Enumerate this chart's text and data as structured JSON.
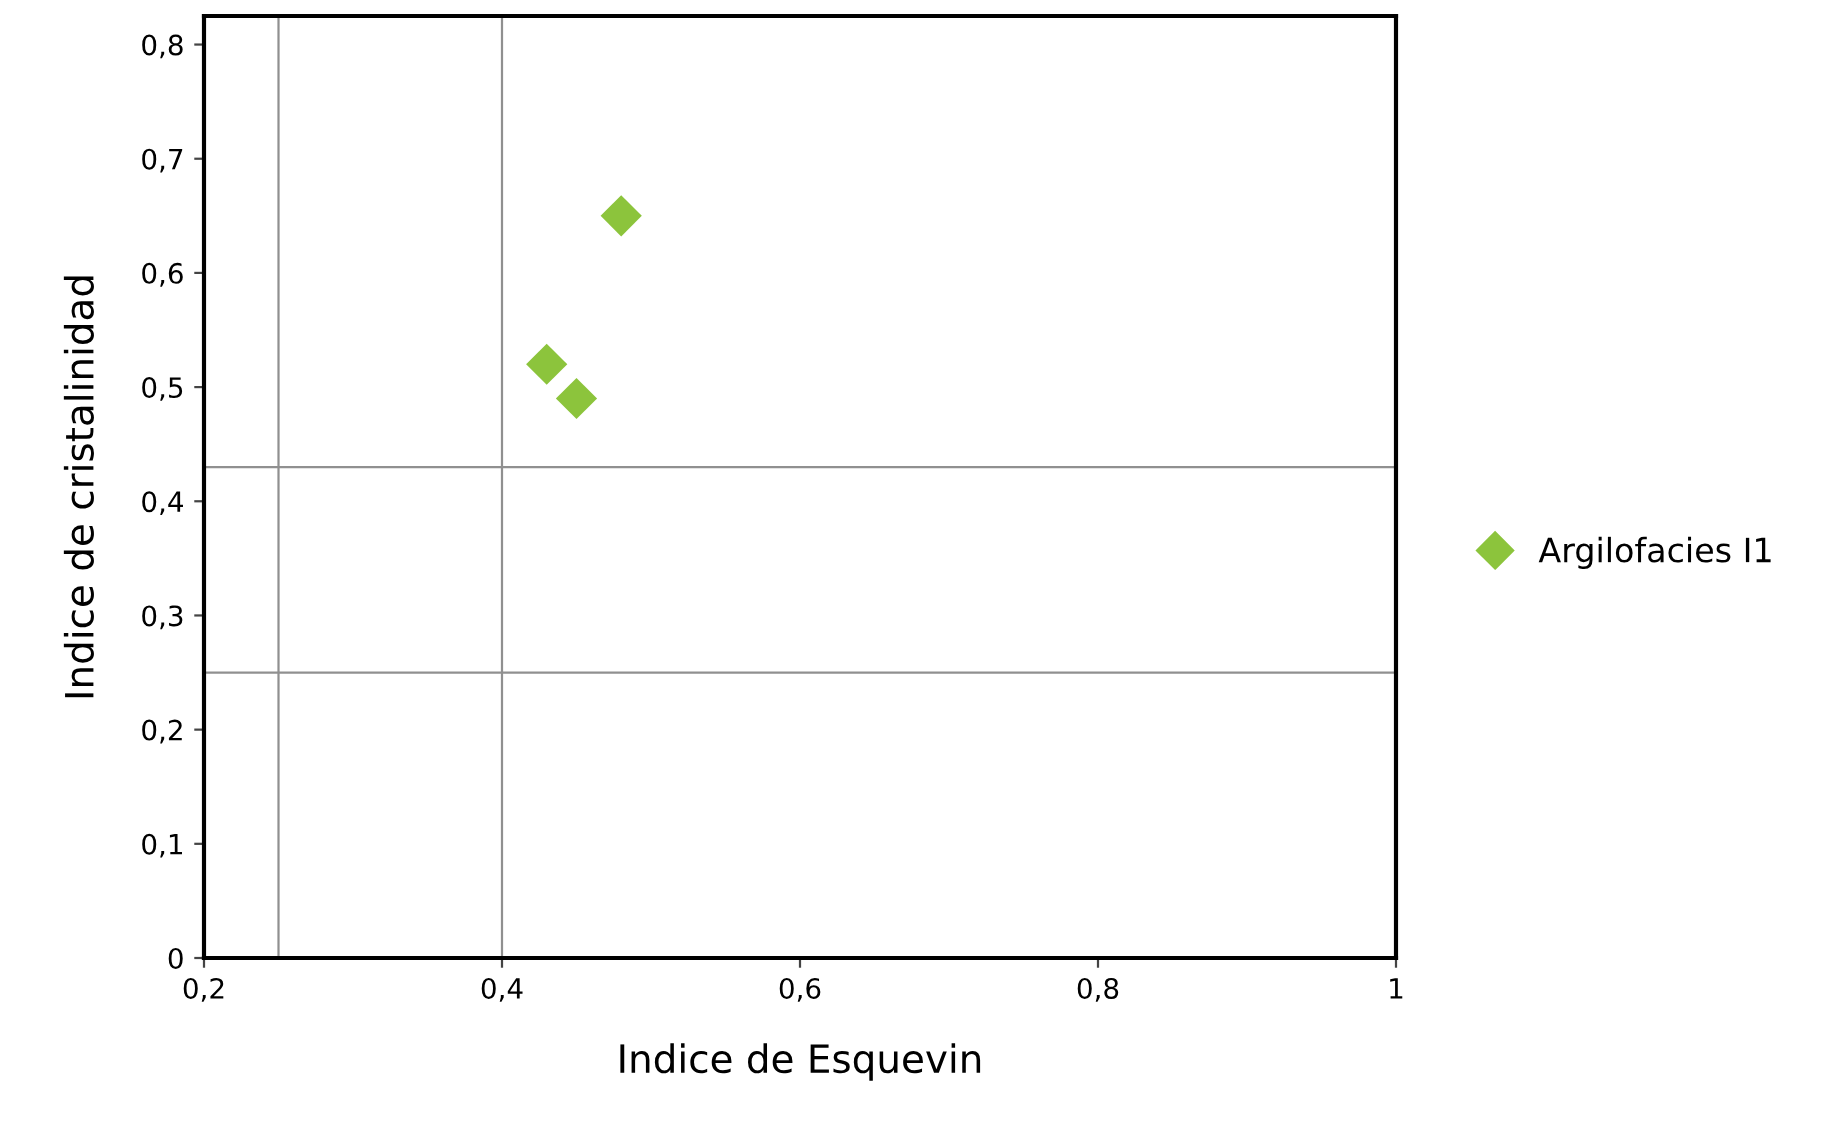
{
  "chart_data": {
    "type": "scatter",
    "xlabel": "Indice de Esquevin",
    "ylabel": "Indice de cristalinidad",
    "series": [
      {
        "name": "Argilofacies I1",
        "color": "#8cc43c",
        "x": [
          0.43,
          0.45,
          0.48
        ],
        "values": [
          0.52,
          0.49,
          0.65
        ]
      }
    ],
    "marker": "diamond",
    "legend": "right",
    "grid": false,
    "xlim": [
      0.2,
      1
    ],
    "xticks": [
      {
        "value": 0.2,
        "label": "0,2"
      },
      {
        "value": 0.4,
        "label": "0,4"
      },
      {
        "value": 0.6,
        "label": "0,6"
      },
      {
        "value": 0.8,
        "label": "0,8"
      },
      1
    ],
    "ylim": [
      0,
      0.825
    ],
    "yticks": [
      0,
      {
        "value": 0.1,
        "label": "0,1"
      },
      {
        "value": 0.2,
        "label": "0,2"
      },
      {
        "value": 0.3,
        "label": "0,3"
      },
      {
        "value": 0.4,
        "label": "0,4"
      },
      {
        "value": 0.5,
        "label": "0,5"
      },
      {
        "value": 0.6,
        "label": "0,6"
      },
      {
        "value": 0.7,
        "label": "0,7"
      },
      {
        "value": 0.8,
        "label": "0,8"
      }
    ],
    "ref_lines": [
      {
        "axis": "x",
        "value": 0.25,
        "color": "#909090"
      },
      {
        "axis": "x",
        "value": 0.4,
        "color": "#909090"
      },
      {
        "axis": "y",
        "value": 0.43,
        "color": "#909090"
      },
      {
        "axis": "y",
        "value": 0.25,
        "color": "#909090"
      }
    ]
  }
}
